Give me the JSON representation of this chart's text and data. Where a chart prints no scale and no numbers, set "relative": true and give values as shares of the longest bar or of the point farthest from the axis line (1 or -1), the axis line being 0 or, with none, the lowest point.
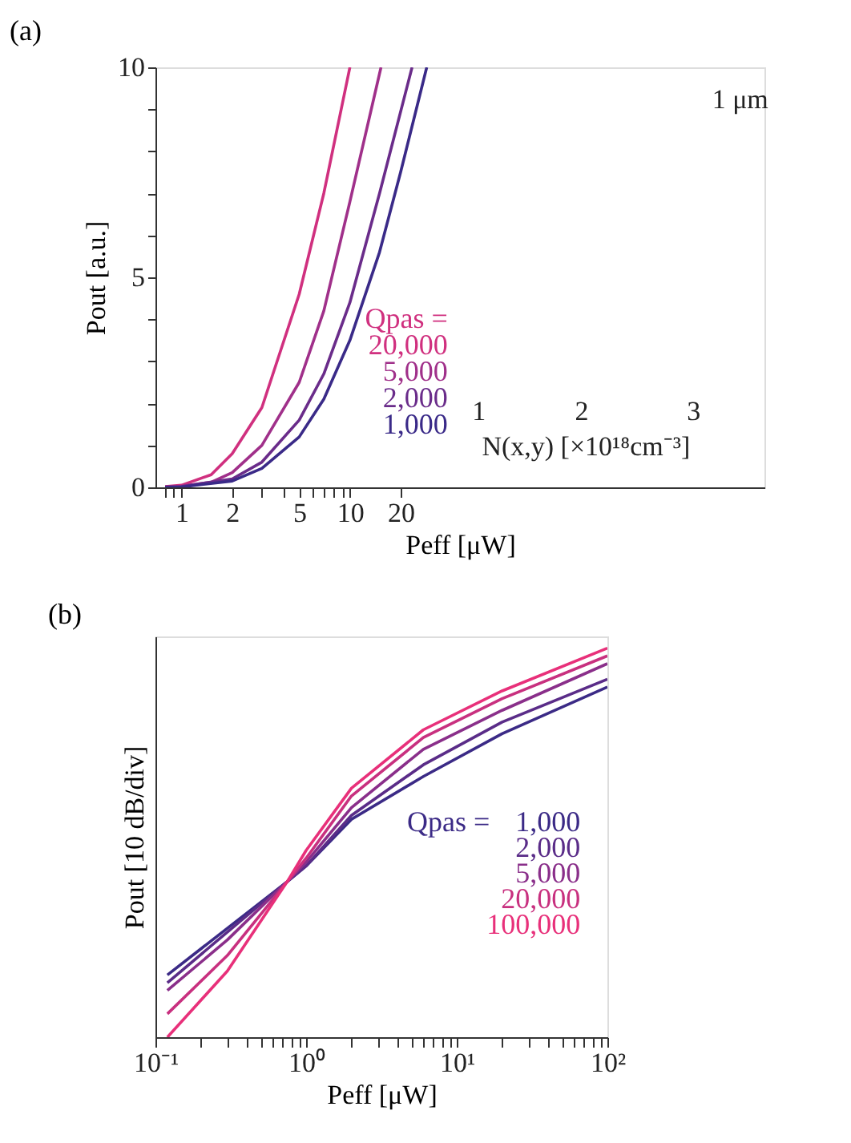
{
  "chart_data": [
    {
      "type": "line",
      "title": "(a)",
      "xlabel": "Peff [μW]",
      "ylabel": "Pout [a.u.]",
      "log": "x",
      "legend": "bottom",
      "legend_title": "Qpas =",
      "marker": "none",
      "line_style": "solid",
      "grid": false,
      "xlim": [
        0.7,
        2900
      ],
      "ylim": [
        0,
        10
      ],
      "xticks": [
        {
          "value": 0.8,
          "label": null
        },
        {
          "value": 0.9,
          "label": null
        },
        1,
        2,
        {
          "value": 3,
          "label": null
        },
        {
          "value": 4,
          "label": null
        },
        5,
        {
          "value": 6,
          "label": null
        },
        {
          "value": 7,
          "label": null
        },
        {
          "value": 8,
          "label": null
        },
        {
          "value": 9,
          "label": null
        },
        10,
        20
      ],
      "yticks": [
        0,
        {
          "value": 1,
          "label": null
        },
        {
          "value": 2,
          "label": null
        },
        {
          "value": 3,
          "label": null
        },
        {
          "value": 4,
          "label": null
        },
        5,
        {
          "value": 6,
          "label": null
        },
        {
          "value": 7,
          "label": null
        },
        {
          "value": 8,
          "label": null
        },
        {
          "value": 9,
          "label": null
        },
        10
      ],
      "series": [
        {
          "name": "20,000",
          "color": "#d0307f",
          "x": [
            0.8,
            1,
            1.5,
            2,
            3,
            5,
            7,
            10
          ],
          "values": [
            0.02,
            0.05,
            0.3,
            0.8,
            1.9,
            4.6,
            7.0,
            10
          ]
        },
        {
          "name": "5,000",
          "color": "#a0308a",
          "x": [
            0.8,
            1,
            1.5,
            2,
            3,
            5,
            7,
            10,
            15.3
          ],
          "values": [
            0.01,
            0.03,
            0.12,
            0.35,
            1.0,
            2.5,
            4.2,
            6.8,
            10
          ]
        },
        {
          "name": "2,000",
          "color": "#6a2c8a",
          "x": [
            0.8,
            1,
            2,
            3,
            5,
            7,
            10,
            15,
            23.4
          ],
          "values": [
            0.01,
            0.02,
            0.2,
            0.6,
            1.6,
            2.7,
            4.4,
            7.0,
            10
          ]
        },
        {
          "name": "1,000",
          "color": "#3a2a88",
          "x": [
            0.8,
            1,
            2,
            3,
            5,
            7,
            10,
            15,
            20,
            28.6
          ],
          "values": [
            0.0,
            0.01,
            0.15,
            0.45,
            1.2,
            2.1,
            3.5,
            5.6,
            7.5,
            10
          ]
        }
      ],
      "annotations": [
        "1 μm",
        "1",
        "2",
        "3",
        "N(x,y) [×10¹⁸cm⁻³]"
      ]
    },
    {
      "type": "line",
      "title": "(b)",
      "xlabel": "Peff [μW]",
      "ylabel": "Pout [10 dB/div]",
      "log": "x",
      "legend": "bottom right",
      "legend_title": "Qpas =",
      "marker": "none",
      "line_style": "solid",
      "grid": false,
      "relative": true,
      "xlim": [
        0.1,
        100
      ],
      "xticks": [
        {
          "value": 0.1,
          "label": "10⁻¹"
        },
        {
          "value": 0.2,
          "label": null
        },
        {
          "value": 0.3,
          "label": null
        },
        {
          "value": 0.4,
          "label": null
        },
        {
          "value": 0.5,
          "label": null
        },
        {
          "value": 0.6,
          "label": null
        },
        {
          "value": 0.7,
          "label": null
        },
        {
          "value": 0.8,
          "label": null
        },
        {
          "value": 0.9,
          "label": null
        },
        {
          "value": 1,
          "label": "10⁰"
        },
        {
          "value": 2,
          "label": null
        },
        {
          "value": 3,
          "label": null
        },
        {
          "value": 4,
          "label": null
        },
        {
          "value": 5,
          "label": null
        },
        {
          "value": 6,
          "label": null
        },
        {
          "value": 7,
          "label": null
        },
        {
          "value": 8,
          "label": null
        },
        {
          "value": 9,
          "label": null
        },
        {
          "value": 10,
          "label": "10¹"
        },
        {
          "value": 20,
          "label": null
        },
        {
          "value": 30,
          "label": null
        },
        {
          "value": 40,
          "label": null
        },
        {
          "value": 50,
          "label": null
        },
        {
          "value": 60,
          "label": null
        },
        {
          "value": 70,
          "label": null
        },
        {
          "value": 80,
          "label": null
        },
        {
          "value": 90,
          "label": null
        },
        {
          "value": 100,
          "label": "10²"
        }
      ],
      "x": [
        0.12,
        0.3,
        0.75,
        1,
        2,
        6,
        20,
        100
      ],
      "series": [
        {
          "name": "1,000",
          "color": "#3b2a86",
          "values": [
            0.16,
            0.28,
            0.4,
            0.44,
            0.56,
            0.67,
            0.78,
            0.9
          ]
        },
        {
          "name": "2,000",
          "color": "#5a2c88",
          "values": [
            0.14,
            0.27,
            0.4,
            0.44,
            0.57,
            0.7,
            0.81,
            0.92
          ]
        },
        {
          "name": "5,000",
          "color": "#8a2f8a",
          "values": [
            0.12,
            0.25,
            0.4,
            0.45,
            0.59,
            0.74,
            0.84,
            0.96
          ]
        },
        {
          "name": "20,000",
          "color": "#c8307f",
          "values": [
            0.06,
            0.21,
            0.4,
            0.46,
            0.62,
            0.77,
            0.87,
            0.98
          ]
        },
        {
          "name": "100,000",
          "color": "#e8307a",
          "values": [
            0.0,
            0.17,
            0.4,
            0.48,
            0.64,
            0.79,
            0.89,
            1.0
          ]
        }
      ]
    }
  ]
}
